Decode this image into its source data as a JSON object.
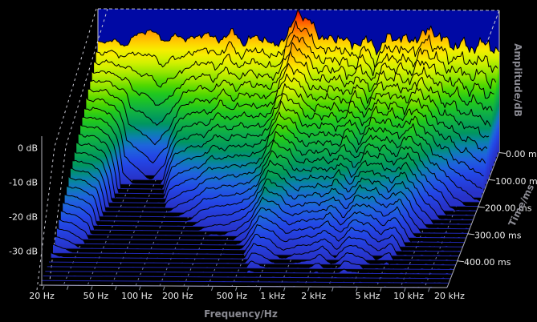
{
  "axes": {
    "frequency": {
      "title": "Frequency/Hz",
      "scale": "log",
      "min_hz": 20,
      "max_hz": 20000,
      "tick_hz": [
        20,
        50,
        100,
        200,
        500,
        1000,
        2000,
        5000,
        10000,
        20000
      ],
      "tick_labels": [
        "20 Hz",
        "50 Hz",
        "100 Hz",
        "200 Hz",
        "500 Hz",
        "1 kHz",
        "2 kHz",
        "5 kHz",
        "10 kHz",
        "20 kHz"
      ]
    },
    "amplitude": {
      "title": "Amplitude/dB",
      "min_db": -40,
      "max_db": 0,
      "tick_db": [
        0,
        -10,
        -20,
        -30
      ],
      "tick_labels": [
        "0 dB",
        "-10 dB",
        "-20 dB",
        "-30 dB"
      ]
    },
    "time": {
      "title": "Time/ms",
      "min_ms": 0,
      "max_ms": 500,
      "tick_ms": [
        0,
        100,
        200,
        300,
        400
      ],
      "tick_labels": [
        "0.00 ms",
        "100.00 ms",
        "200.00 ms",
        "300.00 ms",
        "400.00 ms"
      ]
    }
  },
  "chart_data": {
    "type": "waterfall",
    "description": "Cumulative spectral decay waterfall: sound level vs frequency (log, 20 Hz - 20 kHz) for successive time slices 0 - 500 ms; level decays toward the -40 dB floor over time",
    "num_slices": 31,
    "time_span_ms": 500,
    "floor_db": -40,
    "top_db": 0,
    "control_points": {
      "freq_hz": [
        20,
        25,
        32,
        40,
        50,
        63,
        80,
        100,
        125,
        160,
        200,
        250,
        315,
        400,
        500,
        560,
        630,
        710,
        800,
        1000,
        1250,
        1600,
        2000,
        2500,
        3150,
        4000,
        5000,
        6300,
        8000,
        10000,
        12500,
        16000,
        20000
      ],
      "level_db_t0": [
        -10,
        -9,
        -10.5,
        -7,
        -6,
        -9,
        -7.5,
        -8.6,
        -6.5,
        -8.8,
        -6,
        -9.5,
        -7,
        -10,
        -8,
        -4.5,
        1,
        -2.5,
        -3.6,
        -8.5,
        -7,
        -9.5,
        -8,
        -10.5,
        -6.5,
        -8,
        -7,
        -4.4,
        -8.4,
        -9,
        -9.6,
        -8.5,
        -10.7
      ],
      "decay_to_floor_ms": [
        420,
        400,
        360,
        150,
        130,
        115,
        140,
        230,
        250,
        270,
        300,
        320,
        320,
        340,
        380,
        420,
        460,
        450,
        440,
        400,
        420,
        430,
        460,
        410,
        470,
        450,
        400,
        430,
        330,
        280,
        230,
        200,
        185
      ]
    },
    "noise": {
      "comb_ripple_db": [
        0.45,
        1.95
      ],
      "slice_jitter_db": [
        0.5,
        1.4
      ],
      "decay_exponent": 0.88
    },
    "colormap": [
      [
        0,
        "#CE0000"
      ],
      [
        -1.5,
        "#F02000"
      ],
      [
        -3.5,
        "#FF5200"
      ],
      [
        -5.5,
        "#FF8400"
      ],
      [
        -7.5,
        "#FFAC00"
      ],
      [
        -10,
        "#FFD200"
      ],
      [
        -12,
        "#F6EE00"
      ],
      [
        -14.5,
        "#CFF000"
      ],
      [
        -17,
        "#96E600"
      ],
      [
        -19.5,
        "#52D800"
      ],
      [
        -22,
        "#20C81E"
      ],
      [
        -25,
        "#0FAF46"
      ],
      [
        -28,
        "#00965F"
      ],
      [
        -30.5,
        "#0A82AA"
      ],
      [
        -33,
        "#1E64DC"
      ],
      [
        -36,
        "#2346E6"
      ],
      [
        -40,
        "#2832C8"
      ]
    ],
    "colors": {
      "background": "#000000",
      "back_wall": "#0009A4",
      "floor_line": "#2128B4",
      "slice_outline": "#000000",
      "frame_solid": "#B0B0B8",
      "frame_dashed": "#C8C8D2",
      "floor_grid_dashed": "#7880A0",
      "minor_tick": "#9098A8",
      "tick_label": "#EDEDED",
      "axis_title": "#8A8A92"
    }
  }
}
